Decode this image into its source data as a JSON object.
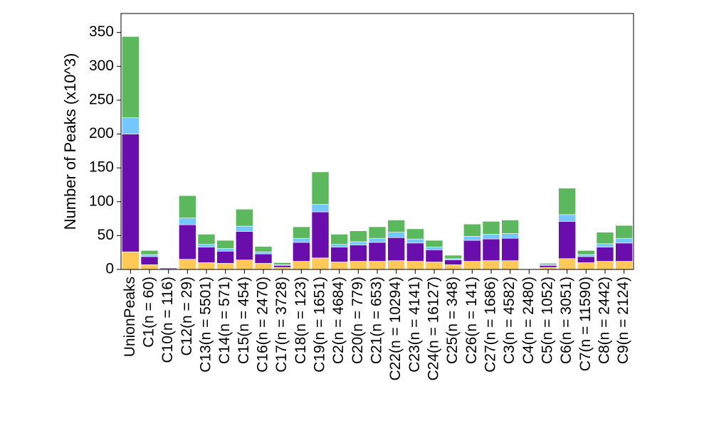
{
  "chart_data": {
    "type": "bar",
    "stacked": true,
    "title": "",
    "xlabel": "",
    "ylabel": "Number of Peaks (x10^3)",
    "ylim": [
      0,
      378
    ],
    "yticks": [
      0,
      50,
      100,
      150,
      200,
      250,
      300,
      350
    ],
    "grid": false,
    "legend": "none",
    "categories": [
      "UnionPeaks",
      "C1(n = 60)",
      "C10(n = 116)",
      "C12(n = 29)",
      "C13(n = 5501)",
      "C14(n = 571)",
      "C15(n = 454)",
      "C16(n = 2470)",
      "C17(n = 3728)",
      "C18(n = 123)",
      "C19(n = 1651)",
      "C2(n = 4684)",
      "C20(n = 779)",
      "C21(n = 653)",
      "C22(n = 10294)",
      "C23(n = 4141)",
      "C24(n = 16127)",
      "C25(n = 348)",
      "C26(n = 141)",
      "C27(n = 1686)",
      "C3(n = 4582)",
      "C4(n = 2480)",
      "C5(n = 1052)",
      "C6(n = 3051)",
      "C7(n = 11590)",
      "C8(n = 2442)",
      "C9(n = 2124)"
    ],
    "series": [
      {
        "name": "orange",
        "color": "#ffc857",
        "values": [
          26,
          7,
          0.5,
          15,
          10,
          9,
          14,
          9,
          3,
          12,
          17,
          11,
          12,
          12,
          13,
          12,
          11,
          7,
          12,
          13,
          13,
          0,
          3,
          16,
          10,
          12,
          12
        ]
      },
      {
        "name": "purple",
        "color": "#6a0dad",
        "values": [
          174,
          12,
          1.5,
          51,
          23,
          18,
          42,
          14,
          3,
          28,
          68,
          22,
          24,
          28,
          34,
          27,
          18,
          7,
          31,
          32,
          33,
          0,
          3,
          55,
          9,
          21,
          27
        ]
      },
      {
        "name": "light-blue",
        "color": "#74c6ff",
        "values": [
          24,
          3,
          0.5,
          10,
          4,
          4,
          8,
          3,
          1,
          6,
          11,
          4,
          5,
          6,
          8,
          6,
          4,
          2,
          6,
          7,
          7,
          0,
          1,
          10,
          3,
          5,
          7
        ]
      },
      {
        "name": "green",
        "color": "#5cb85c",
        "values": [
          120,
          6,
          0.5,
          33,
          15,
          12,
          25,
          8,
          3,
          17,
          48,
          15,
          16,
          17,
          18,
          15,
          10,
          5,
          18,
          19,
          20,
          0.5,
          2,
          39,
          6,
          17,
          19
        ]
      }
    ]
  }
}
